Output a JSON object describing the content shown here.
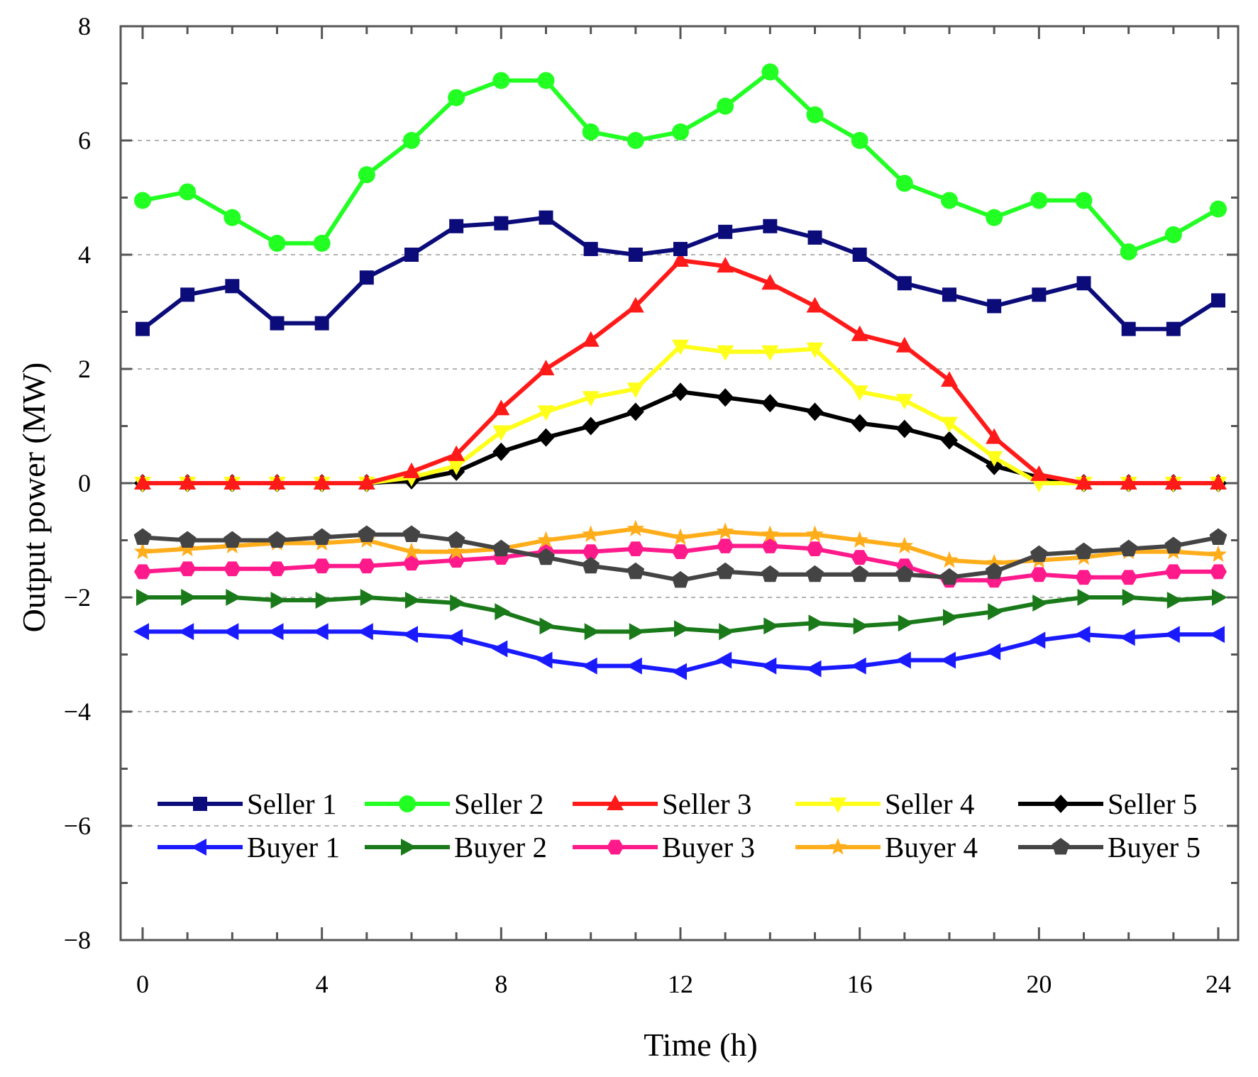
{
  "chart_data": {
    "type": "line",
    "title": "",
    "xlabel": "Time (h)",
    "ylabel": "Output power (MW)",
    "xlim": [
      0,
      24
    ],
    "ylim": [
      -8,
      8
    ],
    "x_ticks": [
      0,
      4,
      8,
      12,
      16,
      20,
      24
    ],
    "x_tick_labels": [
      "0",
      "4",
      "8",
      "12",
      "16",
      "20",
      "24"
    ],
    "y_ticks": [
      -8,
      -6,
      -4,
      -2,
      0,
      2,
      4,
      6,
      8
    ],
    "y_tick_labels": [
      "−8",
      "−6",
      "−4",
      "−2",
      "0",
      "2",
      "4",
      "6",
      "8"
    ],
    "grid": "horizontal dashed at major ticks",
    "legend_position": "lower-center inside plot",
    "x": [
      0,
      1,
      2,
      3,
      4,
      5,
      6,
      7,
      8,
      9,
      10,
      11,
      12,
      13,
      14,
      15,
      16,
      17,
      18,
      19,
      20,
      21,
      22,
      23,
      24
    ],
    "series": [
      {
        "name": "Seller 1",
        "color": "#0b0b7a",
        "marker": "square",
        "values": [
          2.7,
          3.3,
          3.45,
          2.8,
          2.8,
          3.6,
          4.0,
          4.5,
          4.55,
          4.65,
          4.1,
          4.0,
          4.1,
          4.4,
          4.5,
          4.3,
          4.0,
          3.5,
          3.3,
          3.1,
          3.3,
          3.5,
          2.7,
          2.7,
          3.2
        ]
      },
      {
        "name": "Seller 2",
        "color": "#22ff22",
        "marker": "circle",
        "values": [
          4.95,
          5.1,
          4.65,
          4.2,
          4.2,
          5.4,
          6.0,
          6.75,
          7.05,
          7.05,
          6.15,
          6.0,
          6.15,
          6.6,
          7.2,
          6.45,
          6.0,
          5.25,
          4.95,
          4.65,
          4.95,
          4.95,
          4.05,
          4.35,
          4.8
        ]
      },
      {
        "name": "Seller 3",
        "color": "#ff1a1a",
        "marker": "triangle-up",
        "values": [
          0,
          0,
          0,
          0,
          0,
          0,
          0.2,
          0.5,
          1.3,
          2.0,
          2.5,
          3.1,
          3.9,
          3.8,
          3.5,
          3.1,
          2.6,
          2.4,
          1.8,
          0.8,
          0.15,
          0,
          0,
          0,
          0
        ]
      },
      {
        "name": "Seller 4",
        "color": "#ffff1a",
        "marker": "triangle-down",
        "values": [
          0,
          0,
          0,
          0,
          0,
          0,
          0.1,
          0.3,
          0.9,
          1.25,
          1.5,
          1.65,
          2.4,
          2.3,
          2.3,
          2.35,
          1.6,
          1.45,
          1.05,
          0.45,
          0.0,
          0,
          0,
          0,
          0
        ]
      },
      {
        "name": "Seller 5",
        "color": "#000000",
        "marker": "diamond",
        "values": [
          0,
          0,
          0,
          0,
          0,
          0,
          0.05,
          0.2,
          0.55,
          0.8,
          1.0,
          1.25,
          1.6,
          1.5,
          1.4,
          1.25,
          1.05,
          0.95,
          0.75,
          0.3,
          0.1,
          0,
          0,
          0,
          0
        ]
      },
      {
        "name": "Buyer 1",
        "color": "#1a1aff",
        "marker": "triangle-left",
        "values": [
          -2.6,
          -2.6,
          -2.6,
          -2.6,
          -2.6,
          -2.6,
          -2.65,
          -2.7,
          -2.9,
          -3.1,
          -3.2,
          -3.2,
          -3.3,
          -3.1,
          -3.2,
          -3.25,
          -3.2,
          -3.1,
          -3.1,
          -2.95,
          -2.75,
          -2.65,
          -2.7,
          -2.65,
          -2.65
        ]
      },
      {
        "name": "Buyer 2",
        "color": "#1a7a1a",
        "marker": "triangle-right",
        "values": [
          -2.0,
          -2.0,
          -2.0,
          -2.05,
          -2.05,
          -2.0,
          -2.05,
          -2.1,
          -2.25,
          -2.5,
          -2.6,
          -2.6,
          -2.55,
          -2.6,
          -2.5,
          -2.45,
          -2.5,
          -2.45,
          -2.35,
          -2.25,
          -2.1,
          -2.0,
          -2.0,
          -2.05,
          -2.0
        ]
      },
      {
        "name": "Buyer 3",
        "color": "#ff1a8c",
        "marker": "hexagon",
        "values": [
          -1.55,
          -1.5,
          -1.5,
          -1.5,
          -1.45,
          -1.45,
          -1.4,
          -1.35,
          -1.3,
          -1.2,
          -1.2,
          -1.15,
          -1.2,
          -1.1,
          -1.1,
          -1.15,
          -1.3,
          -1.45,
          -1.7,
          -1.7,
          -1.6,
          -1.65,
          -1.65,
          -1.55,
          -1.55
        ]
      },
      {
        "name": "Buyer 4",
        "color": "#ffad1a",
        "marker": "star",
        "values": [
          -1.2,
          -1.15,
          -1.1,
          -1.05,
          -1.05,
          -1.0,
          -1.2,
          -1.2,
          -1.15,
          -1.0,
          -0.9,
          -0.8,
          -0.95,
          -0.85,
          -0.9,
          -0.9,
          -1.0,
          -1.1,
          -1.35,
          -1.4,
          -1.35,
          -1.3,
          -1.2,
          -1.2,
          -1.25
        ]
      },
      {
        "name": "Buyer 5",
        "color": "#444444",
        "marker": "pentagon",
        "values": [
          -0.95,
          -1.0,
          -1.0,
          -1.0,
          -0.95,
          -0.9,
          -0.9,
          -1.0,
          -1.15,
          -1.3,
          -1.45,
          -1.55,
          -1.7,
          -1.55,
          -1.6,
          -1.6,
          -1.6,
          -1.6,
          -1.65,
          -1.55,
          -1.25,
          -1.2,
          -1.15,
          -1.1,
          -0.95
        ]
      }
    ]
  }
}
